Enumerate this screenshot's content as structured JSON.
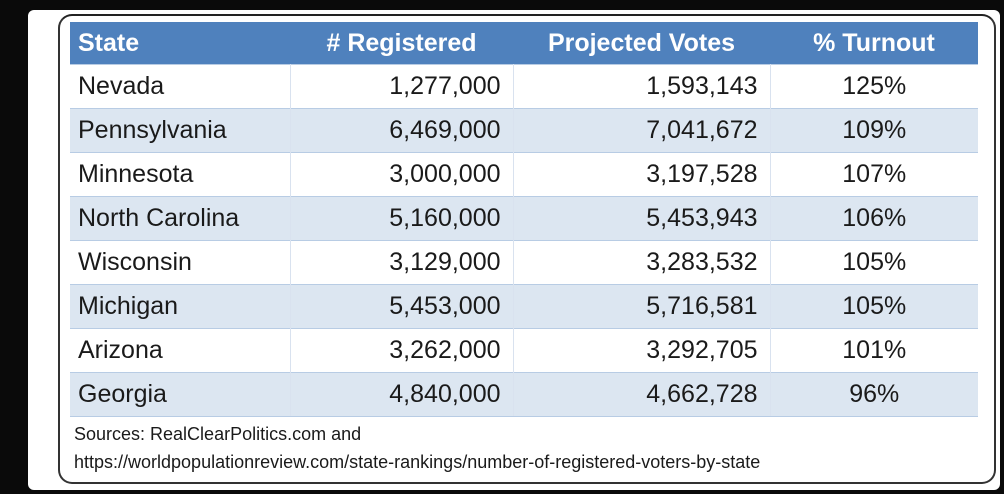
{
  "table": {
    "headers": [
      "State",
      "# Registered",
      "Projected Votes",
      "% Turnout"
    ],
    "rows": [
      [
        "Nevada",
        "1,277,000",
        "1,593,143",
        "125%"
      ],
      [
        "Pennsylvania",
        "6,469,000",
        "7,041,672",
        "109%"
      ],
      [
        "Minnesota",
        "3,000,000",
        "3,197,528",
        "107%"
      ],
      [
        "North Carolina",
        "5,160,000",
        "5,453,943",
        "106%"
      ],
      [
        "Wisconsin",
        "3,129,000",
        "3,283,532",
        "105%"
      ],
      [
        "Michigan",
        "5,453,000",
        "5,716,581",
        "105%"
      ],
      [
        "Arizona",
        "3,262,000",
        "3,292,705",
        "101%"
      ],
      [
        "Georgia",
        "4,840,000",
        "4,662,728",
        "96%"
      ]
    ]
  },
  "sources": {
    "line1": "Sources: RealClearPolitics.com and",
    "line2": "https://worldpopulationreview.com/state-rankings/number-of-registered-voters-by-state"
  },
  "colors": {
    "header": "#4f81bd",
    "row_alt": "#dce6f1"
  }
}
